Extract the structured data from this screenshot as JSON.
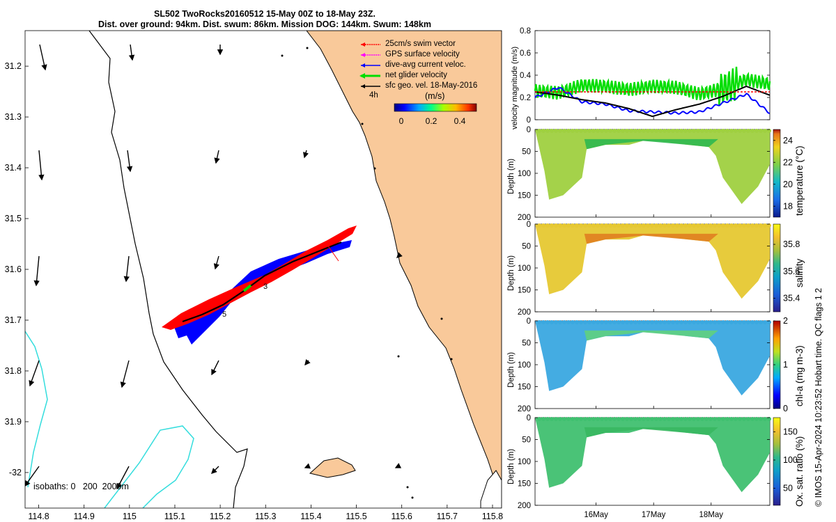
{
  "title": {
    "line1": "SL502 TwoRocks20160512 15-May 00Z to 18-May 23Z.",
    "line2": "Dist. over ground: 94km. Dist. swum: 86km. Mission DOG: 144km. Swum: 148km"
  },
  "credit": "© IMOS 15-Apr-2024 10:23:52 Hobart time. QC flags 1  2",
  "colors": {
    "land": "#f9c99a",
    "swim_vector": "#ff0000",
    "gps_velocity": "#ff00ff",
    "dive_avg_current": "#0000ff",
    "net_glider": "#00dd00",
    "sfc_geo": "#000000",
    "isobath_2000": "#33dddd",
    "coast": "#000000"
  },
  "chart_data": [
    {
      "type": "map",
      "xlim": [
        114.77,
        115.82
      ],
      "ylim": [
        -32.07,
        -31.13
      ],
      "x_ticks": [
        "114.8",
        "114.9",
        "115",
        "115.1",
        "115.2",
        "115.3",
        "115.4",
        "115.5",
        "115.6",
        "115.7",
        "115.8"
      ],
      "y_ticks": [
        "31.2",
        "31.3",
        "31.4",
        "31.5",
        "31.6",
        "31.7",
        "31.8",
        "31.9",
        "-32"
      ],
      "legend": {
        "placement": "top-right",
        "entries": [
          "25cm/s swim vector",
          "GPS surface velocity",
          "dive-avg current veloc.",
          "net glider velocity",
          "sfc geo. vel. 18-May-2016"
        ]
      },
      "time_marker": "4h",
      "colorbar": {
        "label": "(m/s)",
        "ticks": [
          "0",
          "0.2",
          "0.4"
        ],
        "range": [
          0,
          0.5
        ]
      },
      "isobath_label": "isobaths: 0   200  2000m",
      "track_labels": [
        "3",
        "5"
      ],
      "glider_track": {
        "lon": [
          115.12,
          115.16,
          115.22,
          115.27,
          115.32,
          115.38,
          115.44,
          115.48
        ],
        "lat": [
          -31.715,
          -31.705,
          -31.685,
          -31.66,
          -31.635,
          -31.615,
          -31.6,
          -31.58
        ]
      }
    },
    {
      "type": "line",
      "ylabel": "velocity magnitude (m/s)",
      "ylim": [
        0,
        0.8
      ],
      "y_ticks": [
        "0",
        "0.2",
        "0.4",
        "0.6",
        "0.8"
      ],
      "x": [
        0,
        0.1,
        0.2,
        0.3,
        0.4,
        0.5,
        0.6,
        0.7,
        0.8,
        0.9,
        1.0
      ],
      "series": [
        {
          "key": "green",
          "values": [
            0.26,
            0.24,
            0.31,
            0.3,
            0.27,
            0.3,
            0.29,
            0.23,
            0.28,
            0.36,
            0.32
          ],
          "color": "#00dd00"
        },
        {
          "key": "blue",
          "values": [
            0.2,
            0.29,
            0.16,
            0.14,
            0.08,
            0.07,
            0.06,
            0.07,
            0.15,
            0.23,
            0.06
          ],
          "color": "#0000ff"
        },
        {
          "key": "black",
          "values": [
            0.25,
            0.22,
            0.18,
            0.15,
            0.1,
            0.03,
            0.09,
            0.14,
            0.21,
            0.3,
            0.22
          ],
          "color": "#000000"
        },
        {
          "key": "red",
          "values": [
            0.25,
            0.25,
            0.25,
            0.25,
            0.25,
            0.25,
            0.25,
            0.25,
            0.25,
            0.25,
            0.25
          ],
          "color": "#ff0000"
        }
      ]
    },
    {
      "type": "heatmap",
      "panels": [
        {
          "key": "temp",
          "ylabel": "Depth (m)",
          "cbar_label": "temperature (°C)",
          "cbar_ticks": [
            "18",
            "20",
            "22",
            "24"
          ],
          "cbar_range": [
            17,
            25
          ],
          "y_ticks": [
            "0",
            "50",
            "100",
            "150",
            "200"
          ],
          "colormap": "parula",
          "base_value": 21.5,
          "top_value": 20.2
        },
        {
          "key": "sal",
          "ylabel": "Depth (m)",
          "cbar_label": "salinity",
          "cbar_ticks": [
            "35.4",
            "35.6",
            "35.8"
          ],
          "cbar_range": [
            35.3,
            35.95
          ],
          "y_ticks": [
            "0",
            "50",
            "100",
            "150",
            "200"
          ],
          "colormap": "parula",
          "base_value": 35.7,
          "top_value": 35.88
        },
        {
          "key": "chl",
          "ylabel": "Depth (m)",
          "cbar_label": "chl-a (mg m-3)",
          "cbar_ticks": [
            "0",
            "1",
            "2"
          ],
          "cbar_range": [
            0,
            2
          ],
          "y_ticks": [
            "0",
            "50",
            "100",
            "150",
            "200"
          ],
          "colormap": "jet",
          "base_value": 0.6,
          "top_value": 0.9
        },
        {
          "key": "ox",
          "ylabel": "Depth (m)",
          "cbar_label": "Ox. sat. ratio (%)",
          "cbar_ticks": [
            "50",
            "100",
            "150"
          ],
          "cbar_range": [
            20,
            175
          ],
          "y_ticks": [
            "0",
            "50",
            "100",
            "150",
            "200"
          ],
          "colormap": "parula",
          "base_value": 100,
          "top_value": 103
        }
      ],
      "x_ticks": [
        "16May",
        "17May",
        "18May"
      ]
    }
  ]
}
